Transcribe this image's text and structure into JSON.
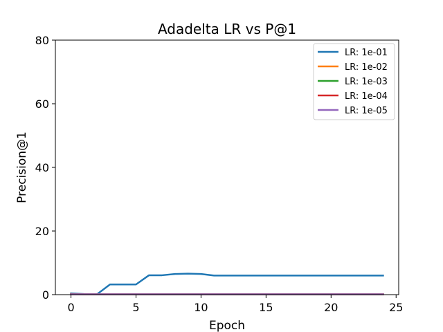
{
  "chart_data": {
    "type": "line",
    "title": "Adadelta LR vs P@1",
    "xlabel": "Epoch",
    "ylabel": "Precision@1",
    "xlim": [
      -1.2,
      25.2
    ],
    "ylim": [
      0,
      80
    ],
    "xticks": [
      0,
      5,
      10,
      15,
      20,
      25
    ],
    "yticks": [
      0,
      20,
      40,
      60,
      80
    ],
    "grid": false,
    "legend_position": "top-right",
    "x": [
      0,
      1,
      2,
      3,
      4,
      5,
      6,
      7,
      8,
      9,
      10,
      11,
      12,
      13,
      14,
      15,
      16,
      17,
      18,
      19,
      20,
      21,
      22,
      23,
      24
    ],
    "series": [
      {
        "name": "LR: 1e-01",
        "color": "#1f77b4",
        "values": [
          0.4,
          0.2,
          0.1,
          3.2,
          3.2,
          3.2,
          6.1,
          6.1,
          6.5,
          6.6,
          6.5,
          6.0,
          6.0,
          6.0,
          6.0,
          6.0,
          6.0,
          6.0,
          6.0,
          6.0,
          6.0,
          6.0,
          6.0,
          6.0,
          6.0
        ]
      },
      {
        "name": "LR: 1e-02",
        "color": "#ff7f0e",
        "values": [
          0.2,
          0.1,
          0.1,
          0.1,
          0.1,
          0.1,
          0.1,
          0.1,
          0.1,
          0.1,
          0.1,
          0.1,
          0.1,
          0.1,
          0.1,
          0.1,
          0.1,
          0.1,
          0.1,
          0.1,
          0.1,
          0.1,
          0.1,
          0.1,
          0.1
        ]
      },
      {
        "name": "LR: 1e-03",
        "color": "#2ca02c",
        "values": [
          0.1,
          0.1,
          0.1,
          0.1,
          0.1,
          0.1,
          0.1,
          0.1,
          0.1,
          0.1,
          0.1,
          0.1,
          0.1,
          0.1,
          0.1,
          0.1,
          0.1,
          0.1,
          0.1,
          0.1,
          0.1,
          0.1,
          0.1,
          0.1,
          0.1
        ]
      },
      {
        "name": "LR: 1e-04",
        "color": "#d62728",
        "values": [
          0.1,
          0.1,
          0.1,
          0.1,
          0.1,
          0.1,
          0.1,
          0.1,
          0.1,
          0.1,
          0.1,
          0.1,
          0.1,
          0.1,
          0.1,
          0.1,
          0.1,
          0.1,
          0.1,
          0.1,
          0.1,
          0.1,
          0.1,
          0.1,
          0.1
        ]
      },
      {
        "name": "LR: 1e-05",
        "color": "#9467bd",
        "values": [
          0.1,
          0.1,
          0.1,
          0.1,
          0.1,
          0.1,
          0.1,
          0.1,
          0.1,
          0.1,
          0.1,
          0.1,
          0.1,
          0.1,
          0.1,
          0.1,
          0.1,
          0.1,
          0.1,
          0.1,
          0.1,
          0.1,
          0.1,
          0.1,
          0.1
        ]
      }
    ]
  }
}
